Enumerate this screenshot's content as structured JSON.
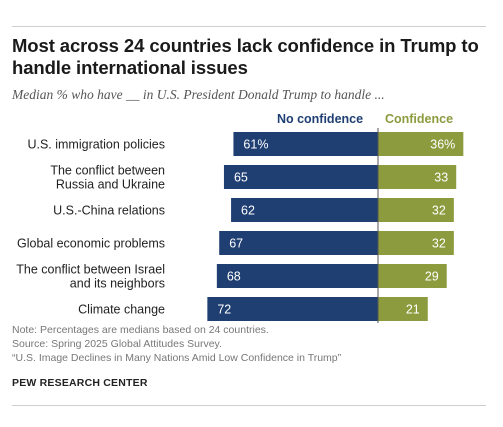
{
  "title": "Most across 24 countries lack confidence in Trump to handle international issues",
  "subtitle": "Median % who have __ in U.S. President Donald Trump to handle ...",
  "note": "Note: Percentages are medians based on 24 countries.",
  "source": "Source: Spring 2025 Global Attitudes Survey.",
  "report": "“U.S. Image Declines in Many Nations Amid Low Confidence in Trump”",
  "brand": "PEW RESEARCH CENTER",
  "colors": {
    "no_confidence": "#1f3f73",
    "confidence": "#8c9b3e"
  },
  "chart_data": {
    "type": "bar",
    "orientation": "horizontal-diverging",
    "categories": [
      [
        "U.S. immigration policies"
      ],
      [
        "The conflict between",
        "Russia and Ukraine"
      ],
      [
        "U.S.-China relations"
      ],
      [
        "Global economic problems"
      ],
      [
        "The conflict between Israel",
        "and its neighbors"
      ],
      [
        "Climate change"
      ]
    ],
    "series": [
      {
        "name": "No confidence",
        "values": [
          61,
          65,
          62,
          67,
          68,
          72
        ],
        "labels": [
          "61%",
          "65",
          "62",
          "67",
          "68",
          "72"
        ]
      },
      {
        "name": "Confidence",
        "values": [
          36,
          33,
          32,
          32,
          29,
          21
        ],
        "labels": [
          "36%",
          "33",
          "32",
          "32",
          "29",
          "21"
        ]
      }
    ]
  }
}
